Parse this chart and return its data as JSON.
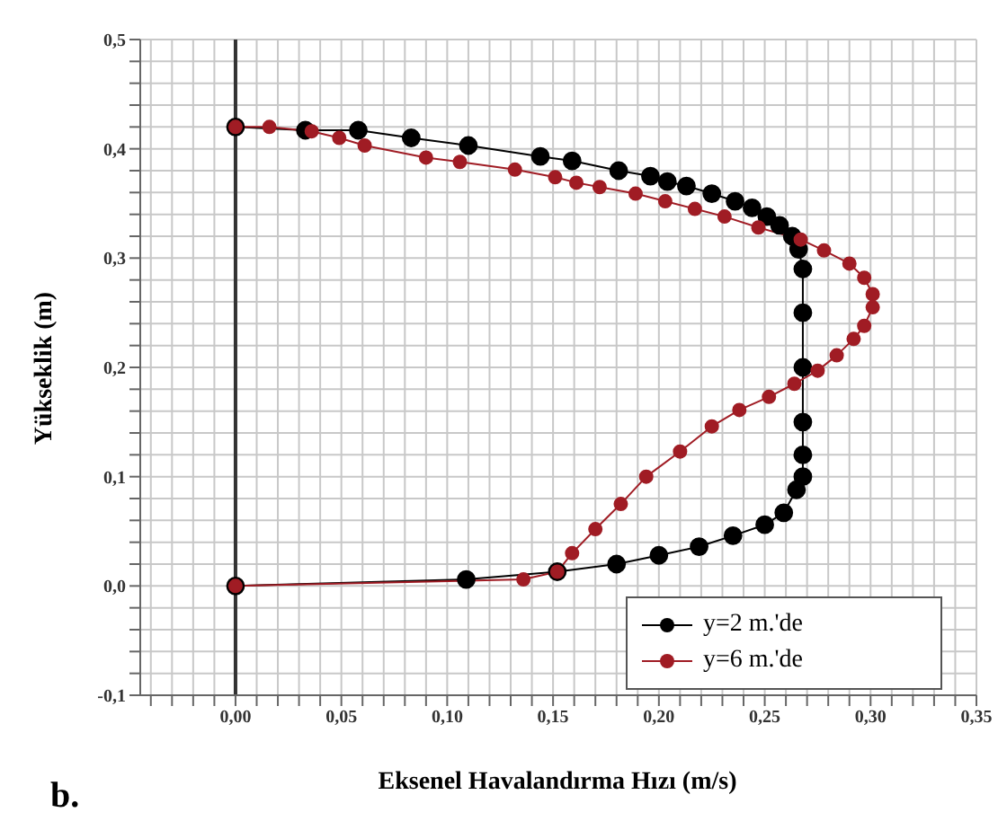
{
  "chart_data": {
    "type": "line",
    "xlabel": "Eksenel Havalandırma Hızı (m/s)",
    "ylabel": "Yükseklik (m)",
    "annotations": [
      "b."
    ],
    "xlim": [
      -0.045,
      0.35
    ],
    "xticks": [
      {
        "value": -0.04,
        "label": null
      },
      {
        "value": -0.03,
        "label": null
      },
      {
        "value": -0.02,
        "label": null
      },
      {
        "value": -0.01,
        "label": null
      },
      {
        "value": 0,
        "label": "0,00"
      },
      {
        "value": 0.01,
        "label": null
      },
      {
        "value": 0.02,
        "label": null
      },
      {
        "value": 0.03,
        "label": null
      },
      {
        "value": 0.04,
        "label": null
      },
      {
        "value": 0.05,
        "label": "0,05"
      },
      {
        "value": 0.06,
        "label": null
      },
      {
        "value": 0.07,
        "label": null
      },
      {
        "value": 0.08,
        "label": null
      },
      {
        "value": 0.09,
        "label": null
      },
      {
        "value": 0.1,
        "label": "0,10"
      },
      {
        "value": 0.11,
        "label": null
      },
      {
        "value": 0.12,
        "label": null
      },
      {
        "value": 0.13,
        "label": null
      },
      {
        "value": 0.14,
        "label": null
      },
      {
        "value": 0.15,
        "label": "0,15"
      },
      {
        "value": 0.16,
        "label": null
      },
      {
        "value": 0.17,
        "label": null
      },
      {
        "value": 0.18,
        "label": null
      },
      {
        "value": 0.19,
        "label": null
      },
      {
        "value": 0.2,
        "label": "0,20"
      },
      {
        "value": 0.21,
        "label": null
      },
      {
        "value": 0.22,
        "label": null
      },
      {
        "value": 0.23,
        "label": null
      },
      {
        "value": 0.24,
        "label": null
      },
      {
        "value": 0.25,
        "label": "0,25"
      },
      {
        "value": 0.26,
        "label": null
      },
      {
        "value": 0.27,
        "label": null
      },
      {
        "value": 0.28,
        "label": null
      },
      {
        "value": 0.29,
        "label": null
      },
      {
        "value": 0.3,
        "label": "0,30"
      },
      {
        "value": 0.31,
        "label": null
      },
      {
        "value": 0.32,
        "label": null
      },
      {
        "value": 0.33,
        "label": null
      },
      {
        "value": 0.34,
        "label": null
      },
      {
        "value": 0.35,
        "label": "0,35"
      }
    ],
    "ylim": [
      -0.1,
      0.5
    ],
    "yticks": [
      {
        "value": -0.1,
        "label": "-0,1"
      },
      {
        "value": -0.08,
        "label": null
      },
      {
        "value": -0.06,
        "label": null
      },
      {
        "value": -0.04,
        "label": null
      },
      {
        "value": -0.02,
        "label": null
      },
      {
        "value": 0,
        "label": "0,0"
      },
      {
        "value": 0.02,
        "label": null
      },
      {
        "value": 0.04,
        "label": null
      },
      {
        "value": 0.06,
        "label": null
      },
      {
        "value": 0.08,
        "label": null
      },
      {
        "value": 0.1,
        "label": "0,1"
      },
      {
        "value": 0.12,
        "label": null
      },
      {
        "value": 0.14,
        "label": null
      },
      {
        "value": 0.16,
        "label": null
      },
      {
        "value": 0.18,
        "label": null
      },
      {
        "value": 0.2,
        "label": "0,2"
      },
      {
        "value": 0.22,
        "label": null
      },
      {
        "value": 0.24,
        "label": null
      },
      {
        "value": 0.26,
        "label": null
      },
      {
        "value": 0.28,
        "label": null
      },
      {
        "value": 0.3,
        "label": "0,3"
      },
      {
        "value": 0.32,
        "label": null
      },
      {
        "value": 0.34,
        "label": null
      },
      {
        "value": 0.36,
        "label": null
      },
      {
        "value": 0.38,
        "label": null
      },
      {
        "value": 0.4,
        "label": "0,4"
      },
      {
        "value": 0.42,
        "label": null
      },
      {
        "value": 0.44,
        "label": null
      },
      {
        "value": 0.46,
        "label": null
      },
      {
        "value": 0.48,
        "label": null
      },
      {
        "value": 0.5,
        "label": "0,5"
      }
    ],
    "grid": true,
    "legend": "bottom right",
    "marker": "circle",
    "line_style": "solid",
    "ref_lines": [
      {
        "axis": "x",
        "value": 0,
        "color": "#333333"
      }
    ],
    "series": [
      {
        "name": "y=2 m.'de",
        "color": "#000000",
        "x": [
          0,
          0.033,
          0.058,
          0.083,
          0.11,
          0.144,
          0.159,
          0.181,
          0.196,
          0.204,
          0.213,
          0.225,
          0.236,
          0.244,
          0.251,
          0.257,
          0.263,
          0.266,
          0.268,
          0.268,
          0.268,
          0.268,
          0.268,
          0.268,
          0.265,
          0.259,
          0.25,
          0.235,
          0.219,
          0.2,
          0.18,
          0.152,
          0.109,
          0
        ],
        "values": [
          0.42,
          0.417,
          0.417,
          0.41,
          0.403,
          0.393,
          0.389,
          0.38,
          0.375,
          0.37,
          0.366,
          0.359,
          0.352,
          0.346,
          0.338,
          0.33,
          0.32,
          0.308,
          0.29,
          0.25,
          0.2,
          0.15,
          0.12,
          0.1,
          0.088,
          0.067,
          0.056,
          0.046,
          0.036,
          0.028,
          0.02,
          0.013,
          0.006,
          0
        ]
      },
      {
        "name": "y=6 m.'de",
        "color": "#a01c24",
        "x": [
          0,
          0.016,
          0.036,
          0.049,
          0.061,
          0.09,
          0.106,
          0.132,
          0.151,
          0.161,
          0.172,
          0.189,
          0.203,
          0.217,
          0.231,
          0.247,
          0.267,
          0.278,
          0.29,
          0.297,
          0.301,
          0.301,
          0.297,
          0.292,
          0.284,
          0.275,
          0.264,
          0.252,
          0.238,
          0.225,
          0.21,
          0.194,
          0.182,
          0.17,
          0.159,
          0.152,
          0.136,
          0
        ],
        "values": [
          0.42,
          0.42,
          0.416,
          0.41,
          0.403,
          0.392,
          0.388,
          0.381,
          0.374,
          0.369,
          0.365,
          0.359,
          0.352,
          0.345,
          0.338,
          0.328,
          0.317,
          0.307,
          0.295,
          0.282,
          0.267,
          0.255,
          0.238,
          0.226,
          0.211,
          0.197,
          0.185,
          0.173,
          0.161,
          0.146,
          0.123,
          0.1,
          0.075,
          0.052,
          0.03,
          0.013,
          0.006,
          0
        ]
      }
    ]
  }
}
